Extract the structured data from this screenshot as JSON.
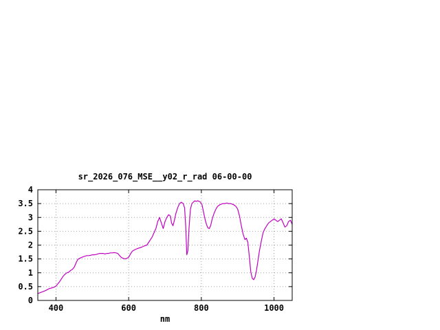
{
  "window": {
    "background": "#ffffff"
  },
  "chart_data": {
    "type": "line",
    "title": "sr_2026_076_MSE__y02_r_rad 06-00-00",
    "xlabel": "nm",
    "ylabel": "",
    "xlim": [
      350,
      1050
    ],
    "ylim": [
      0,
      4
    ],
    "x_ticks": [
      400,
      600,
      800,
      1000
    ],
    "x_tick_labels": [
      "400",
      "600",
      "800",
      "1000"
    ],
    "y_ticks": [
      0,
      0.5,
      1,
      1.5,
      2,
      2.5,
      3,
      3.5,
      4
    ],
    "y_tick_labels": [
      "0",
      "0.5",
      "1",
      "1.5",
      "2",
      "2.5",
      "3",
      "3.5",
      "4"
    ],
    "grid": true,
    "legend": "none",
    "line_color": "#c000c0",
    "border_color": "#000000",
    "grid_color": "#a0a0a0",
    "series": [
      {
        "name": "sr_2026_076_MSE__y02_r_rad",
        "points": [
          [
            350,
            0.25
          ],
          [
            355,
            0.27
          ],
          [
            360,
            0.3
          ],
          [
            365,
            0.32
          ],
          [
            370,
            0.35
          ],
          [
            375,
            0.38
          ],
          [
            380,
            0.42
          ],
          [
            385,
            0.44
          ],
          [
            390,
            0.46
          ],
          [
            395,
            0.48
          ],
          [
            400,
            0.52
          ],
          [
            405,
            0.6
          ],
          [
            410,
            0.68
          ],
          [
            415,
            0.78
          ],
          [
            420,
            0.88
          ],
          [
            425,
            0.95
          ],
          [
            430,
            1.0
          ],
          [
            435,
            1.02
          ],
          [
            440,
            1.08
          ],
          [
            445,
            1.12
          ],
          [
            450,
            1.2
          ],
          [
            455,
            1.35
          ],
          [
            460,
            1.48
          ],
          [
            465,
            1.52
          ],
          [
            470,
            1.55
          ],
          [
            475,
            1.58
          ],
          [
            480,
            1.6
          ],
          [
            485,
            1.62
          ],
          [
            490,
            1.62
          ],
          [
            495,
            1.63
          ],
          [
            500,
            1.65
          ],
          [
            505,
            1.65
          ],
          [
            510,
            1.66
          ],
          [
            515,
            1.68
          ],
          [
            520,
            1.7
          ],
          [
            525,
            1.7
          ],
          [
            530,
            1.7
          ],
          [
            535,
            1.68
          ],
          [
            540,
            1.7
          ],
          [
            545,
            1.7
          ],
          [
            550,
            1.72
          ],
          [
            555,
            1.72
          ],
          [
            560,
            1.73
          ],
          [
            565,
            1.72
          ],
          [
            570,
            1.7
          ],
          [
            575,
            1.62
          ],
          [
            580,
            1.55
          ],
          [
            585,
            1.52
          ],
          [
            590,
            1.5
          ],
          [
            595,
            1.52
          ],
          [
            600,
            1.56
          ],
          [
            605,
            1.68
          ],
          [
            610,
            1.78
          ],
          [
            615,
            1.82
          ],
          [
            620,
            1.85
          ],
          [
            625,
            1.88
          ],
          [
            630,
            1.9
          ],
          [
            635,
            1.92
          ],
          [
            640,
            1.95
          ],
          [
            645,
            1.98
          ],
          [
            650,
            2.0
          ],
          [
            655,
            2.1
          ],
          [
            660,
            2.2
          ],
          [
            665,
            2.3
          ],
          [
            670,
            2.45
          ],
          [
            675,
            2.6
          ],
          [
            680,
            2.85
          ],
          [
            685,
            3.0
          ],
          [
            690,
            2.8
          ],
          [
            695,
            2.6
          ],
          [
            700,
            2.85
          ],
          [
            705,
            3.0
          ],
          [
            710,
            3.1
          ],
          [
            715,
            3.05
          ],
          [
            718,
            2.8
          ],
          [
            722,
            2.7
          ],
          [
            726,
            2.9
          ],
          [
            730,
            3.15
          ],
          [
            735,
            3.35
          ],
          [
            740,
            3.5
          ],
          [
            745,
            3.55
          ],
          [
            750,
            3.5
          ],
          [
            754,
            3.35
          ],
          [
            757,
            2.7
          ],
          [
            760,
            1.65
          ],
          [
            763,
            1.8
          ],
          [
            766,
            2.6
          ],
          [
            770,
            3.3
          ],
          [
            774,
            3.5
          ],
          [
            778,
            3.55
          ],
          [
            782,
            3.6
          ],
          [
            786,
            3.58
          ],
          [
            790,
            3.6
          ],
          [
            794,
            3.58
          ],
          [
            798,
            3.55
          ],
          [
            802,
            3.45
          ],
          [
            806,
            3.2
          ],
          [
            810,
            2.95
          ],
          [
            814,
            2.75
          ],
          [
            818,
            2.62
          ],
          [
            822,
            2.6
          ],
          [
            826,
            2.72
          ],
          [
            830,
            2.95
          ],
          [
            835,
            3.15
          ],
          [
            840,
            3.3
          ],
          [
            845,
            3.4
          ],
          [
            850,
            3.45
          ],
          [
            855,
            3.48
          ],
          [
            860,
            3.5
          ],
          [
            865,
            3.5
          ],
          [
            870,
            3.52
          ],
          [
            875,
            3.5
          ],
          [
            880,
            3.5
          ],
          [
            885,
            3.48
          ],
          [
            890,
            3.45
          ],
          [
            895,
            3.4
          ],
          [
            900,
            3.3
          ],
          [
            905,
            3.05
          ],
          [
            910,
            2.7
          ],
          [
            915,
            2.4
          ],
          [
            920,
            2.2
          ],
          [
            924,
            2.25
          ],
          [
            928,
            2.1
          ],
          [
            932,
            1.6
          ],
          [
            936,
            1.05
          ],
          [
            940,
            0.8
          ],
          [
            944,
            0.75
          ],
          [
            948,
            0.85
          ],
          [
            952,
            1.1
          ],
          [
            956,
            1.45
          ],
          [
            960,
            1.8
          ],
          [
            965,
            2.15
          ],
          [
            970,
            2.45
          ],
          [
            975,
            2.6
          ],
          [
            980,
            2.7
          ],
          [
            985,
            2.8
          ],
          [
            990,
            2.85
          ],
          [
            995,
            2.9
          ],
          [
            1000,
            2.95
          ],
          [
            1005,
            2.9
          ],
          [
            1010,
            2.85
          ],
          [
            1015,
            2.9
          ],
          [
            1020,
            2.95
          ],
          [
            1025,
            2.8
          ],
          [
            1030,
            2.65
          ],
          [
            1035,
            2.7
          ],
          [
            1040,
            2.85
          ],
          [
            1045,
            2.9
          ],
          [
            1050,
            2.75
          ]
        ]
      }
    ]
  }
}
